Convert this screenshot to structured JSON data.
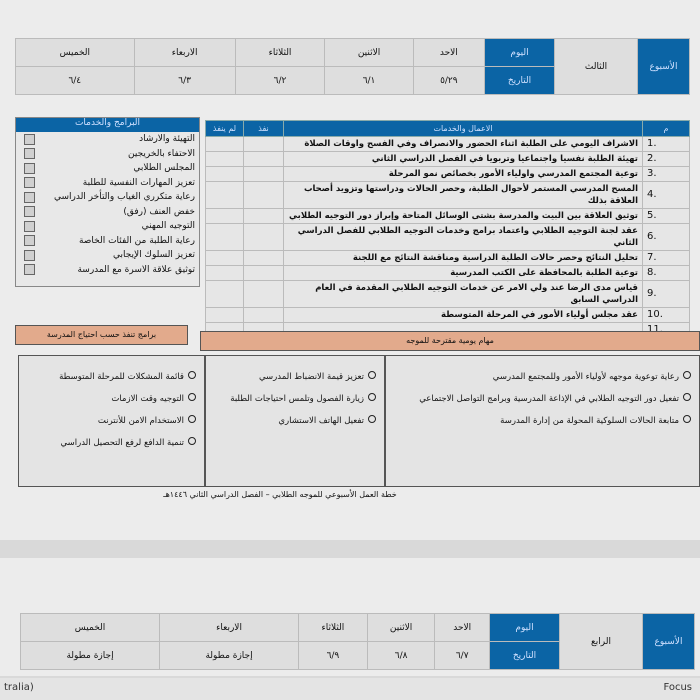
{
  "week3": {
    "week_label": "الأسبوع",
    "week_name": "الثالث",
    "day_label": "اليوم",
    "date_label": "التاريخ",
    "days": [
      "الاحد",
      "الاثنين",
      "الثلاثاء",
      "الاربعاء",
      "الخميس"
    ],
    "dates": [
      "٥/٢٩",
      "٦/١",
      "٦/٢",
      "٦/٣",
      "٦/٤"
    ]
  },
  "tasks": {
    "headers": {
      "num": "م",
      "task": "الاعمال والخدمات",
      "done": "نفذ",
      "not_done": "لم ينفذ"
    },
    "rows": [
      {
        "n": "1.",
        "t": "الاشراف اليومي على الطلبة اثناء الحضور والانصراف وفي الفسح واوقات الصلاة"
      },
      {
        "n": "2.",
        "t": "تهيئة الطلبة نفسيا واجتماعيا وتربويا في الفصل الدراسي الثاني"
      },
      {
        "n": "3.",
        "t": "توعية المجتمع المدرسي واولياء الأمور بخصائص نمو المرحلة"
      },
      {
        "n": "4.",
        "t": "المسح المدرسي المستمر لأحوال الطلبة، وحصر الحالات ودراستها وتزويد أصحاب العلاقة بذلك"
      },
      {
        "n": "5.",
        "t": "توثيق العلاقة بين البيت والمدرسة بشتى الوسائل المتاحة وإبراز دور التوجيه الطلابي"
      },
      {
        "n": "6.",
        "t": "عقد لجنة التوجيه الطلابي واعتماد برامج وخدمات التوجيه الطلابي للفصل الدراسي الثاني"
      },
      {
        "n": "7.",
        "t": "تحليل النتائج وحصر حالات الطلبة الدراسية ومناقشة النتائج مع اللجنة"
      },
      {
        "n": "8.",
        "t": "توعية الطلبة بالمحافظة على الكتب المدرسية"
      },
      {
        "n": "9.",
        "t": "قياس مدى الرضا عند ولي الامر عن خدمات التوجيه الطلابي المقدمة في العام الدراسي السابق"
      },
      {
        "n": "10.",
        "t": "عقد مجلس أولياء الأمور في المرحلة المتوسطة"
      },
      {
        "n": "11.",
        "t": ""
      }
    ]
  },
  "programs": {
    "title": "البرامج والخدمات",
    "items": [
      "التهيئة والارشاد",
      "الاحتفاء بالخريجين",
      "المجلس الطلابي",
      "تعزيز المهارات النفسية للطلبة",
      "رعاية متكرري الغياب والتأخر الدراسي",
      "خفض العنف (رفق)",
      "التوجيه المهني",
      "رعاية الطلبة من الفئات الخاصة",
      "تعزيز السلوك الإيجابي",
      "توثيق علاقة الاسرة مع المدرسة"
    ]
  },
  "daily_tasks_title": "مهام يومية مقترحة للموجه",
  "school_programs_title": "برامج تنفذ حسب احتياج المدرسة",
  "daily_col1": [
    "رعاية توعوية موجهه لأولياء الأمور وللمجتمع المدرسي",
    "تفعيل دور التوجيه الطلابي في الإذاعة المدرسية وبرامج التواصل الاجتماعي",
    "متابعة الحالات السلوكية المحولة من إدارة المدرسة"
  ],
  "daily_col2": [
    "تعزيز قيمة الانضباط المدرسي",
    "زيارة الفصول وتلمس احتياجات الطلبة",
    "تفعيل الهاتف الاستشاري"
  ],
  "school_col": [
    "قائمة المشكلات للمرحلة المتوسطة",
    "التوجيه وقت الازمات",
    "الاستخدام الامن للأنترنت",
    "تنمية الدافع لرفع التحصيل الدراسي"
  ],
  "caption": "خطة العمل الأسبوعي للموجه الطلابي – الفصل الدراسي الثاني ١٤٤٦هـ",
  "week4": {
    "week_label": "الأسبوع",
    "week_name": "الرابع",
    "day_label": "اليوم",
    "date_label": "التاريخ",
    "days": [
      "الاحد",
      "الاثنين",
      "الثلاثاء",
      "الاربعاء",
      "الخميس"
    ],
    "dates": [
      "٦/٧",
      "٦/٨",
      "٦/٩",
      "إجازة مطولة",
      "إجازة مطولة"
    ]
  },
  "status": {
    "language": "tralia)",
    "focus": "Focus"
  },
  "colors": {
    "header_blue": "#0b64a5",
    "salmon": "#e2aa8c"
  }
}
